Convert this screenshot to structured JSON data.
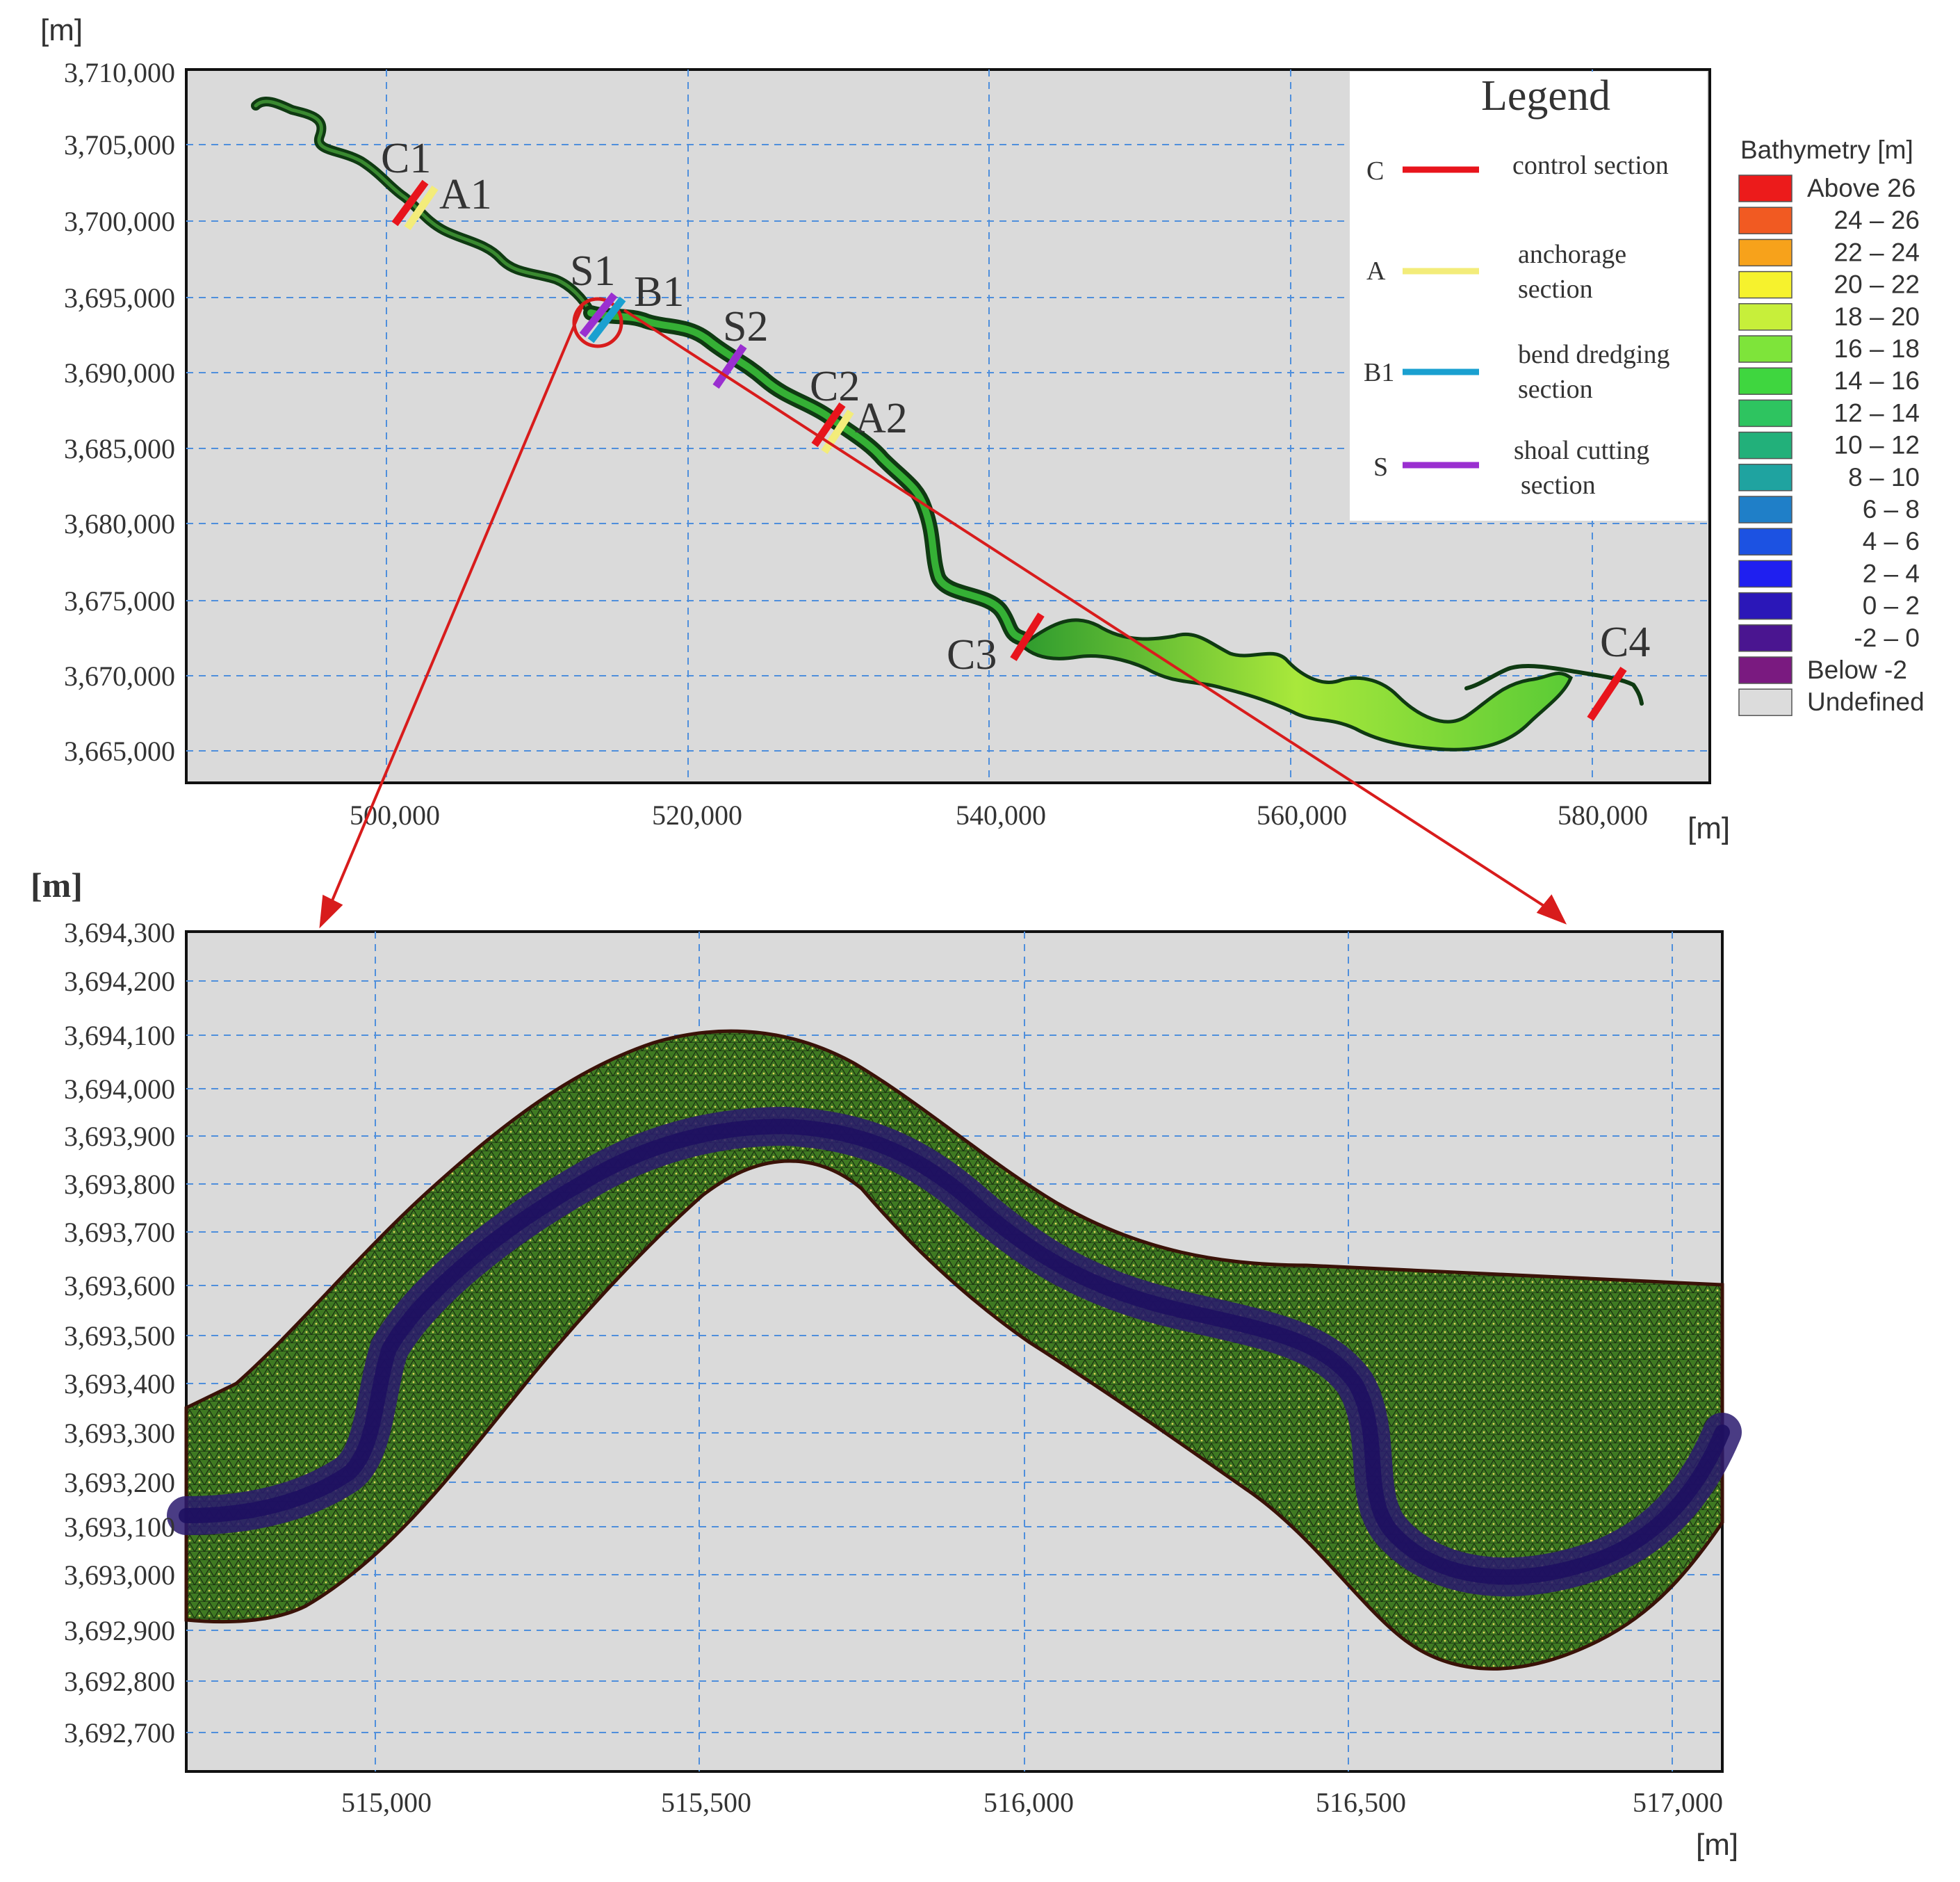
{
  "overview": {
    "y_unit": "[m]",
    "x_unit": "[m]",
    "y_ticks": [
      "3,710,000",
      "3,705,000",
      "3,700,000",
      "3,695,000",
      "3,690,000",
      "3,685,000",
      "3,680,000",
      "3,675,000",
      "3,670,000",
      "3,665,000"
    ],
    "x_ticks": [
      "500,000",
      "520,000",
      "540,000",
      "560,000",
      "580,000"
    ],
    "sections": [
      {
        "label": "C1",
        "type": "control"
      },
      {
        "label": "A1",
        "type": "anchorage"
      },
      {
        "label": "S1",
        "type": "shoal"
      },
      {
        "label": "B1",
        "type": "bend"
      },
      {
        "label": "S2",
        "type": "shoal"
      },
      {
        "label": "C2",
        "type": "control"
      },
      {
        "label": "A2",
        "type": "anchorage"
      },
      {
        "label": "C3",
        "type": "control"
      },
      {
        "label": "C4",
        "type": "control"
      }
    ]
  },
  "legend": {
    "title": "Legend",
    "items": [
      {
        "key": "C",
        "line1": "control section",
        "line2": "",
        "color": "#e8141c"
      },
      {
        "key": "A",
        "line1": "anchorage",
        "line2": "section",
        "color": "#f3ec7a"
      },
      {
        "key": "B1",
        "line1": "bend dredging",
        "line2": "section",
        "color": "#1aa0d0"
      },
      {
        "key": "S",
        "line1": "shoal cutting",
        "line2": "section",
        "color": "#9a2fd0"
      }
    ]
  },
  "bathymetry": {
    "title": "Bathymetry [m]",
    "items": [
      {
        "label": "Above 26",
        "color": "#ec1b1b"
      },
      {
        "label": "24 – 26",
        "color": "#f15a22"
      },
      {
        "label": "22 – 24",
        "color": "#f7a21b"
      },
      {
        "label": "20 – 22",
        "color": "#f6f22d"
      },
      {
        "label": "18 – 20",
        "color": "#c7ef3a"
      },
      {
        "label": "16 – 18",
        "color": "#7ee43a"
      },
      {
        "label": "14 – 16",
        "color": "#3fd63f"
      },
      {
        "label": "12 – 14",
        "color": "#2ec460"
      },
      {
        "label": "10 – 12",
        "color": "#22b07a"
      },
      {
        "label": "8 – 10",
        "color": "#1fa3a0"
      },
      {
        "label": "6 – 8",
        "color": "#1f7fc8"
      },
      {
        "label": "4 – 6",
        "color": "#1c52e2"
      },
      {
        "label": "2 – 4",
        "color": "#1f1ff0"
      },
      {
        "label": "0 – 2",
        "color": "#2b17b8"
      },
      {
        "label": "-2 – 0",
        "color": "#4a1590"
      },
      {
        "label": "Below -2",
        "color": "#7a1a80"
      },
      {
        "label": "Undefined",
        "color": "#dcdcdc"
      }
    ]
  },
  "detail": {
    "y_unit": "[m]",
    "x_unit": "[m]",
    "y_ticks": [
      "3,694,300",
      "3,694,200",
      "3,694,100",
      "3,694,000",
      "3,693,900",
      "3,693,800",
      "3,693,700",
      "3,693,600",
      "3,693,500",
      "3,693,400",
      "3,693,300",
      "3,693,200",
      "3,693,100",
      "3,693,000",
      "3,692,900",
      "3,692,800",
      "3,692,700"
    ],
    "x_ticks": [
      "515,000",
      "515,500",
      "516,000",
      "516,500",
      "517,000"
    ]
  },
  "colors": {
    "plot_bg": "#dadada",
    "grid": "#4f8fdc",
    "arrow": "#d81c1c",
    "river_dark": "#0f3a12",
    "river_mid": "#2f9a2f",
    "channel": "#2a1a6e"
  }
}
